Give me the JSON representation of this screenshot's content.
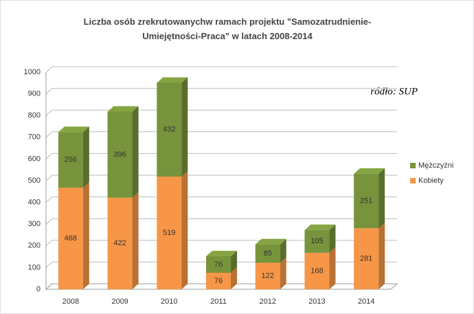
{
  "chart_data": {
    "type": "bar",
    "stacked": true,
    "title": "Liczba osób zrekrutowanychw ramach projektu \"Samozatrudnienie-Umiejętności-Praca\" w latach 2008-2014",
    "annotation": "ródło: SUP",
    "categories": [
      "2008",
      "2009",
      "2010",
      "2011",
      "2012",
      "2013",
      "2014"
    ],
    "series": [
      {
        "name": "Kobiety",
        "color": "#f79646",
        "values": [
          468,
          422,
          519,
          76,
          122,
          168,
          281
        ]
      },
      {
        "name": "Mężczyźni",
        "color": "#77933c",
        "values": [
          256,
          396,
          432,
          76,
          85,
          105,
          251
        ]
      }
    ],
    "ylim": [
      0,
      1000
    ],
    "yticks": [
      0,
      100,
      200,
      300,
      400,
      500,
      600,
      700,
      800,
      900,
      1000
    ],
    "grid": true,
    "legend": "right"
  }
}
